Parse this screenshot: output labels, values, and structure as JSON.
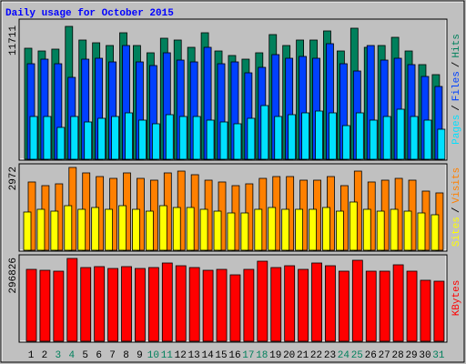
{
  "chart_data": [
    {
      "type": "bar",
      "title": "Daily usage for October 2015",
      "ylim": [
        0,
        11711
      ],
      "yticks": [
        11711
      ],
      "legend_separator": "/",
      "series": [
        {
          "name": "Pages",
          "color": "#00e0ff",
          "values": [
            3770,
            3770,
            2807,
            3770,
            3288,
            3609,
            3770,
            4090,
            3449,
            3128,
            3930,
            3770,
            3770,
            3449,
            3288,
            3128,
            3609,
            4732,
            3770,
            3930,
            4090,
            4251,
            4090,
            2967,
            4090,
            3449,
            3770,
            4411,
            3770,
            3449,
            2647
          ]
        },
        {
          "name": "Files",
          "color": "#0040ff",
          "values": [
            8421,
            8823,
            8421,
            7218,
            8823,
            8903,
            8582,
            10026,
            8582,
            8261,
            9384,
            8742,
            8582,
            9866,
            8421,
            8582,
            7619,
            8100,
            9224,
            8903,
            9063,
            8903,
            10187,
            8421,
            7780,
            10026,
            8742,
            8903,
            8342,
            7299,
            6416
          ]
        },
        {
          "name": "Hits",
          "color": "#00805c",
          "values": [
            9786,
            9545,
            9706,
            11711,
            10508,
            10267,
            10026,
            11150,
            10026,
            9384,
            10668,
            10508,
            9866,
            11150,
            9545,
            9144,
            8823,
            9384,
            10989,
            10026,
            10508,
            10508,
            11311,
            9545,
            11551,
            9866,
            10026,
            10748,
            9545,
            8342,
            7459
          ]
        }
      ]
    },
    {
      "type": "bar",
      "ylim": [
        0,
        2972
      ],
      "yticks": [
        2972
      ],
      "legend_separator": "/",
      "series": [
        {
          "name": "Sites",
          "color": "#ffff00",
          "values": [
            1372,
            1470,
            1404,
            1600,
            1470,
            1535,
            1470,
            1600,
            1470,
            1404,
            1600,
            1535,
            1535,
            1470,
            1404,
            1339,
            1339,
            1470,
            1535,
            1470,
            1470,
            1470,
            1535,
            1404,
            1731,
            1470,
            1404,
            1470,
            1404,
            1339,
            1274
          ]
        },
        {
          "name": "Visits",
          "color": "#ff8000",
          "values": [
            2450,
            2319,
            2384,
            2972,
            2776,
            2645,
            2580,
            2776,
            2580,
            2515,
            2776,
            2841,
            2711,
            2515,
            2450,
            2319,
            2384,
            2580,
            2645,
            2645,
            2515,
            2515,
            2645,
            2319,
            2841,
            2450,
            2515,
            2580,
            2515,
            2123,
            2058
          ]
        }
      ]
    },
    {
      "type": "bar",
      "ylim": [
        0,
        296826
      ],
      "yticks": [
        296826
      ],
      "categories": [
        "1",
        "2",
        "3",
        "4",
        "5",
        "6",
        "7",
        "8",
        "9",
        "10",
        "11",
        "12",
        "13",
        "14",
        "15",
        "16",
        "17",
        "18",
        "19",
        "20",
        "21",
        "22",
        "23",
        "24",
        "25",
        "26",
        "27",
        "28",
        "29",
        "30",
        "31"
      ],
      "category_colors": [
        "#000000",
        "#000000",
        "#00805c",
        "#00805c",
        "#000000",
        "#000000",
        "#000000",
        "#000000",
        "#000000",
        "#00805c",
        "#00805c",
        "#000000",
        "#000000",
        "#000000",
        "#000000",
        "#000000",
        "#00805c",
        "#00805c",
        "#000000",
        "#000000",
        "#000000",
        "#000000",
        "#000000",
        "#00805c",
        "#00805c",
        "#000000",
        "#000000",
        "#000000",
        "#000000",
        "#000000",
        "#00805c"
      ],
      "series": [
        {
          "name": "KBytes",
          "color": "#ff0000",
          "values": [
            257700,
            254400,
            251200,
            296826,
            264200,
            267500,
            260900,
            267500,
            260900,
            264200,
            280500,
            270700,
            264200,
            254400,
            257700,
            238100,
            257700,
            287000,
            264200,
            270700,
            257700,
            280500,
            270700,
            251200,
            290300,
            251200,
            251200,
            274000,
            251200,
            218600,
            215300
          ]
        }
      ]
    }
  ]
}
